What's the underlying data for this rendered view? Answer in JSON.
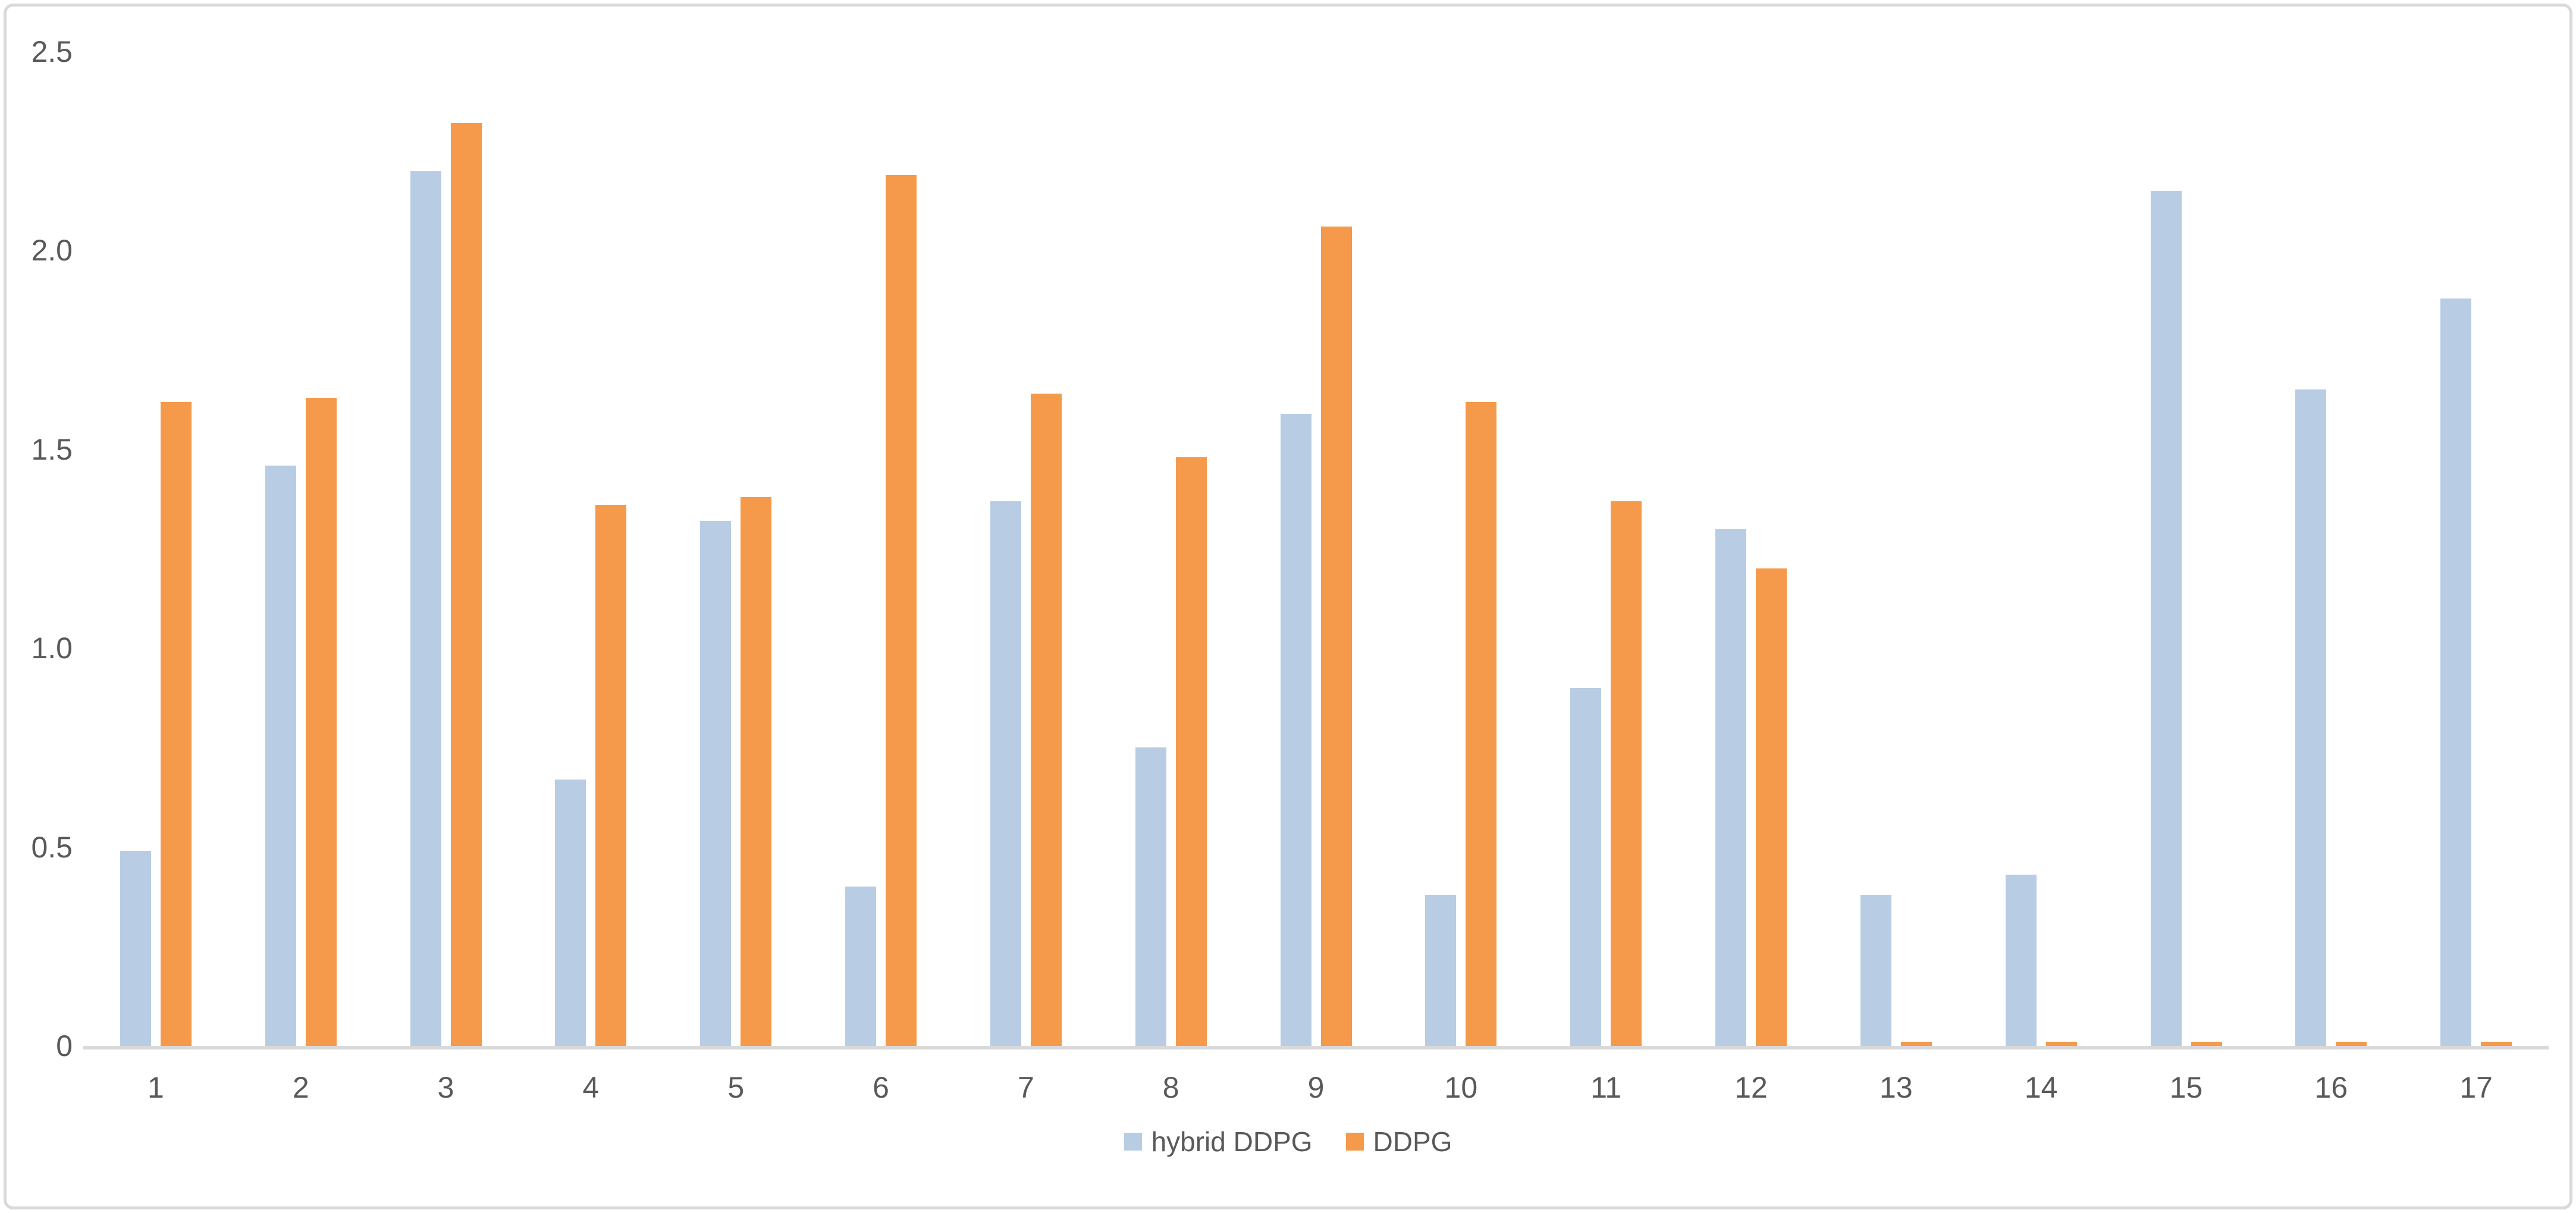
{
  "chart_data": {
    "type": "bar",
    "title": "",
    "xlabel": "",
    "ylabel": "",
    "categories": [
      "1",
      "2",
      "3",
      "4",
      "5",
      "6",
      "7",
      "8",
      "9",
      "10",
      "11",
      "12",
      "13",
      "14",
      "15",
      "16",
      "17"
    ],
    "series": [
      {
        "name": "hybrid DDPG",
        "color": "#B8CCE4",
        "values": [
          0.49,
          1.46,
          2.2,
          0.67,
          1.32,
          0.4,
          1.37,
          0.75,
          1.59,
          0.38,
          0.9,
          1.3,
          0.38,
          0.43,
          2.15,
          1.65,
          1.88
        ]
      },
      {
        "name": "DDPG",
        "color": "#F5994B",
        "values": [
          1.62,
          1.63,
          2.32,
          1.36,
          1.38,
          2.19,
          1.64,
          1.48,
          2.06,
          1.62,
          1.37,
          1.2,
          0.01,
          0.01,
          0.01,
          0.01,
          0.01
        ]
      }
    ],
    "ylim": [
      0,
      2.5
    ],
    "yticks": [
      {
        "label": "0",
        "value": 0
      },
      {
        "label": "0.5",
        "value": 0.5
      },
      {
        "label": "1.0",
        "value": 1.0
      },
      {
        "label": "1.5",
        "value": 1.5
      },
      {
        "label": "2.0",
        "value": 2.0
      },
      {
        "label": "2.5",
        "value": 2.5
      }
    ],
    "grid": false,
    "legend_position": "bottom-center"
  },
  "colors": {
    "background": "#FFFFFF",
    "frame_border": "#D9D9D9",
    "axis_line": "#D9D9D9",
    "tick_text": "#595959"
  }
}
